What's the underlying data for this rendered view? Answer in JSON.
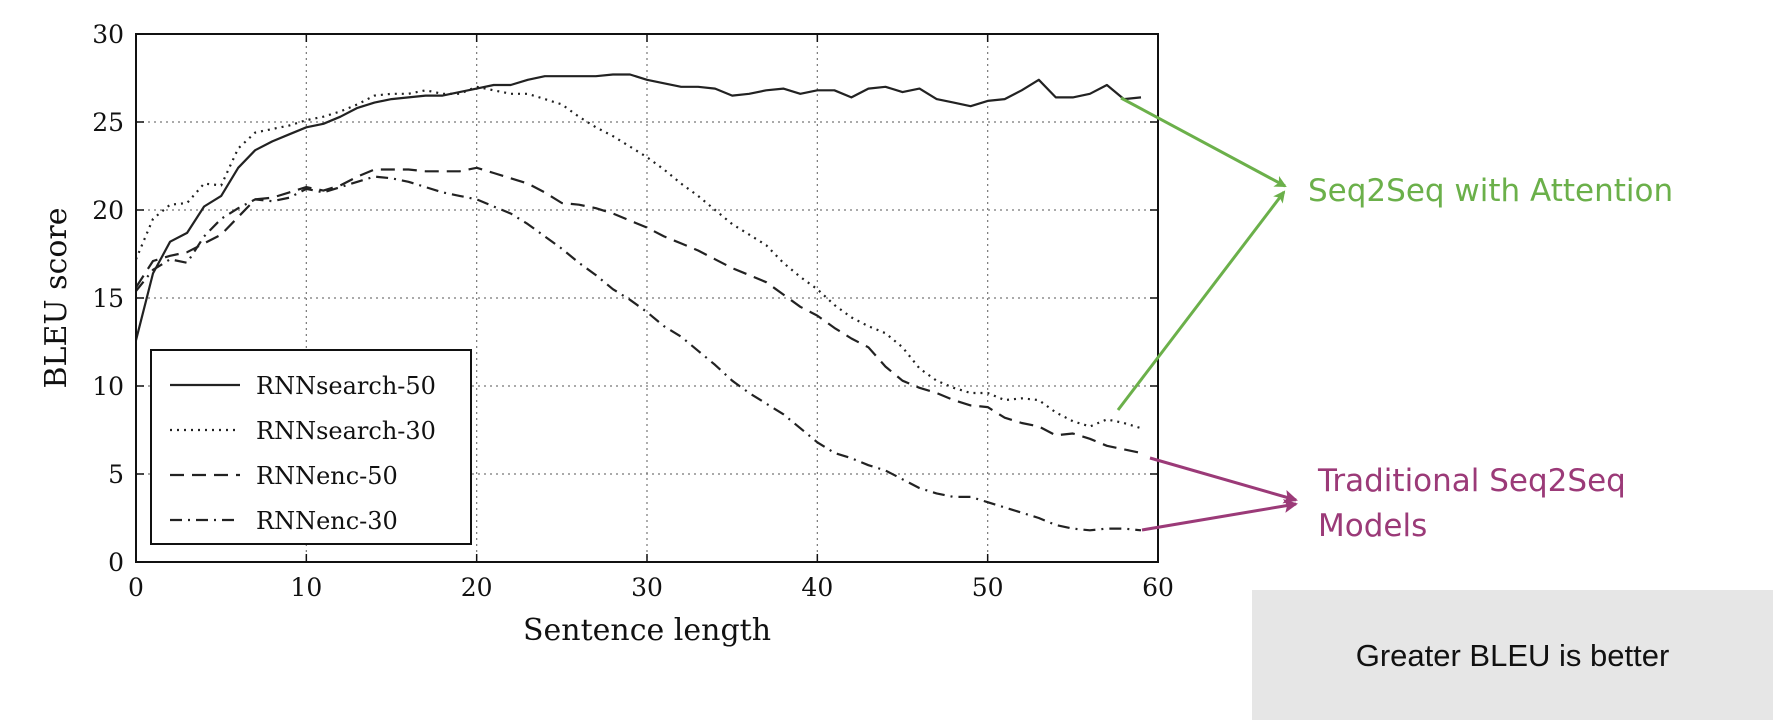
{
  "chart_data": {
    "type": "line",
    "xlabel": "Sentence length",
    "ylabel": "BLEU score",
    "xlim": [
      0,
      60
    ],
    "ylim": [
      0,
      30
    ],
    "xticks": [
      "0",
      "10",
      "20",
      "30",
      "40",
      "50",
      "60"
    ],
    "yticks": [
      "0",
      "5",
      "10",
      "15",
      "20",
      "25",
      "30"
    ],
    "grid": true,
    "legend_position": "lower-left",
    "series": [
      {
        "name": "RNNsearch-50",
        "style": "solid",
        "x": [
          0,
          1,
          2,
          3,
          4,
          5,
          6,
          7,
          8,
          9,
          10,
          11,
          12,
          13,
          14,
          15,
          16,
          17,
          18,
          19,
          20,
          21,
          22,
          23,
          24,
          25,
          26,
          27,
          28,
          29,
          30,
          31,
          32,
          33,
          34,
          35,
          36,
          37,
          38,
          39,
          40,
          41,
          42,
          43,
          44,
          45,
          46,
          47,
          48,
          49,
          50,
          51,
          52,
          53,
          54,
          55,
          56,
          57,
          58,
          59
        ],
        "y": [
          12.6,
          16.4,
          18.2,
          18.7,
          20.2,
          20.8,
          22.4,
          23.4,
          23.9,
          24.3,
          24.7,
          24.9,
          25.3,
          25.8,
          26.1,
          26.3,
          26.4,
          26.5,
          26.5,
          26.7,
          26.9,
          27.1,
          27.1,
          27.4,
          27.6,
          27.6,
          27.6,
          27.6,
          27.7,
          27.7,
          27.4,
          27.2,
          27.0,
          27.0,
          26.9,
          26.5,
          26.6,
          26.8,
          26.9,
          26.6,
          26.8,
          26.8,
          26.4,
          26.9,
          27.0,
          26.7,
          26.9,
          26.3,
          26.1,
          25.9,
          26.2,
          26.3,
          26.8,
          27.4,
          26.4,
          26.4,
          26.6,
          27.1,
          26.3,
          26.4
        ]
      },
      {
        "name": "RNNsearch-30",
        "style": "dotted",
        "x": [
          0,
          1,
          2,
          3,
          4,
          5,
          6,
          7,
          8,
          9,
          10,
          11,
          12,
          13,
          14,
          15,
          16,
          17,
          18,
          19,
          20,
          21,
          22,
          23,
          24,
          25,
          26,
          27,
          28,
          29,
          30,
          31,
          32,
          33,
          34,
          35,
          36,
          37,
          38,
          39,
          40,
          41,
          42,
          43,
          44,
          45,
          46,
          47,
          48,
          49,
          50,
          51,
          52,
          53,
          54,
          55,
          56,
          57,
          58,
          59
        ],
        "y": [
          17.2,
          19.5,
          20.3,
          20.4,
          21.5,
          21.4,
          23.5,
          24.4,
          24.6,
          24.8,
          25.1,
          25.3,
          25.6,
          26.0,
          26.5,
          26.6,
          26.6,
          26.8,
          26.6,
          26.6,
          27.0,
          26.8,
          26.6,
          26.6,
          26.3,
          26.0,
          25.3,
          24.7,
          24.2,
          23.6,
          23.0,
          22.3,
          21.5,
          20.8,
          20.0,
          19.2,
          18.6,
          18.0,
          17.0,
          16.2,
          15.5,
          14.6,
          13.9,
          13.4,
          13.0,
          12.2,
          11.0,
          10.3,
          9.9,
          9.6,
          9.6,
          9.2,
          9.3,
          9.2,
          8.5,
          8.0,
          7.7,
          8.1,
          7.9,
          7.6
        ]
      },
      {
        "name": "RNNenc-50",
        "style": "dashed",
        "x": [
          0,
          1,
          2,
          3,
          4,
          5,
          6,
          7,
          8,
          9,
          10,
          11,
          12,
          13,
          14,
          15,
          16,
          17,
          18,
          19,
          20,
          21,
          22,
          23,
          24,
          25,
          26,
          27,
          28,
          29,
          30,
          31,
          32,
          33,
          34,
          35,
          36,
          37,
          38,
          39,
          40,
          41,
          42,
          43,
          44,
          45,
          46,
          47,
          48,
          49,
          50,
          51,
          52,
          53,
          54,
          55,
          56,
          57,
          58,
          59
        ],
        "y": [
          15.6,
          17.1,
          17.4,
          17.6,
          18.1,
          18.6,
          19.6,
          20.6,
          20.7,
          21.0,
          21.3,
          21.1,
          21.4,
          21.9,
          22.3,
          22.3,
          22.3,
          22.2,
          22.2,
          22.2,
          22.4,
          22.1,
          21.8,
          21.5,
          21.0,
          20.4,
          20.3,
          20.1,
          19.8,
          19.4,
          19.0,
          18.5,
          18.1,
          17.7,
          17.2,
          16.7,
          16.3,
          15.9,
          15.2,
          14.5,
          14.0,
          13.3,
          12.7,
          12.2,
          11.1,
          10.3,
          9.9,
          9.6,
          9.2,
          8.9,
          8.8,
          8.2,
          7.9,
          7.7,
          7.2,
          7.3,
          7.0,
          6.6,
          6.4,
          6.2
        ]
      },
      {
        "name": "RNNenc-30",
        "style": "dash-dot",
        "x": [
          0,
          1,
          2,
          3,
          4,
          5,
          6,
          7,
          8,
          9,
          10,
          11,
          12,
          13,
          14,
          15,
          16,
          17,
          18,
          19,
          20,
          21,
          22,
          23,
          24,
          25,
          26,
          27,
          28,
          29,
          30,
          31,
          32,
          33,
          34,
          35,
          36,
          37,
          38,
          39,
          40,
          41,
          42,
          43,
          44,
          45,
          46,
          47,
          48,
          49,
          50,
          51,
          52,
          53,
          54,
          55,
          56,
          57,
          58,
          59
        ],
        "y": [
          15.4,
          16.6,
          17.2,
          17.0,
          18.5,
          19.5,
          20.1,
          20.6,
          20.5,
          20.7,
          21.2,
          21.0,
          21.3,
          21.6,
          21.9,
          21.8,
          21.6,
          21.3,
          21.0,
          20.8,
          20.6,
          20.2,
          19.8,
          19.2,
          18.5,
          17.8,
          17.0,
          16.3,
          15.5,
          14.9,
          14.2,
          13.4,
          12.8,
          12.0,
          11.2,
          10.3,
          9.6,
          9.0,
          8.4,
          7.6,
          6.8,
          6.2,
          5.9,
          5.5,
          5.2,
          4.7,
          4.2,
          3.9,
          3.7,
          3.7,
          3.4,
          3.1,
          2.8,
          2.5,
          2.1,
          1.9,
          1.8,
          1.9,
          1.9,
          1.8
        ]
      }
    ]
  },
  "annotations": {
    "attention": {
      "label": "Seq2Seq with Attention",
      "color": "#6bb04a"
    },
    "traditional": {
      "line1": "Traditional Seq2Seq",
      "line2": "Models",
      "color": "#9b3a78"
    }
  },
  "note": "Greater BLEU is better"
}
